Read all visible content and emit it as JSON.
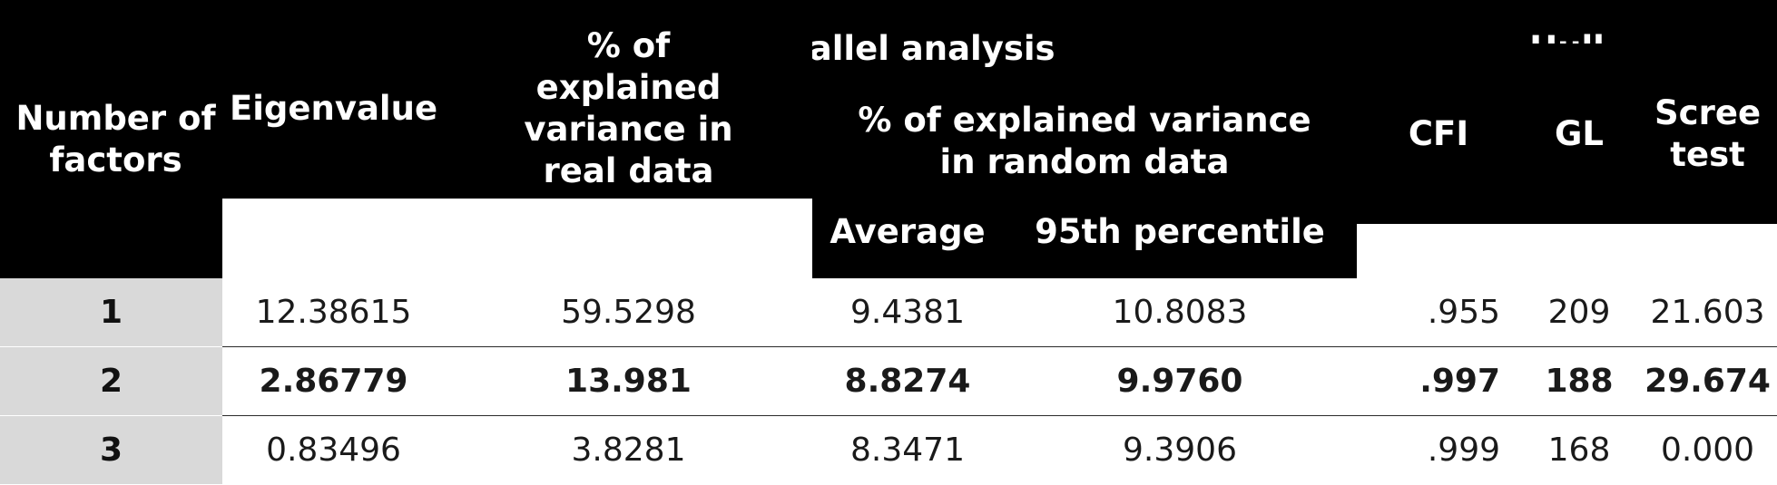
{
  "header": {
    "number_of_factors": "Number of factors",
    "eigenvalue": "Eigenvalue",
    "parallel_analysis": "Parallel analysis",
    "pct_real": "% of explained variance in real data",
    "pct_random": "% of explained variance in random data",
    "average": "Average",
    "p95": "95th percentile",
    "hull": "Hull",
    "cfi": "CFI",
    "gl": "GL",
    "scree": "Scree test"
  },
  "rows": [
    {
      "factors": "1",
      "eigenvalue": "12.38615",
      "pct_real": "59.5298",
      "average": "9.4381",
      "p95": "10.8083",
      "cfi": ".955",
      "gl": "209",
      "scree": "21.603",
      "bold": false
    },
    {
      "factors": "2",
      "eigenvalue": "2.86779",
      "pct_real": "13.981",
      "average": "8.8274",
      "p95": "9.9760",
      "cfi": ".997",
      "gl": "188",
      "scree": "29.674",
      "bold": true
    },
    {
      "factors": "3",
      "eigenvalue": "0.83496",
      "pct_real": "3.8281",
      "average": "8.3471",
      "p95": "9.3906",
      "cfi": ".999",
      "gl": "168",
      "scree": "0.000",
      "bold": false
    }
  ]
}
